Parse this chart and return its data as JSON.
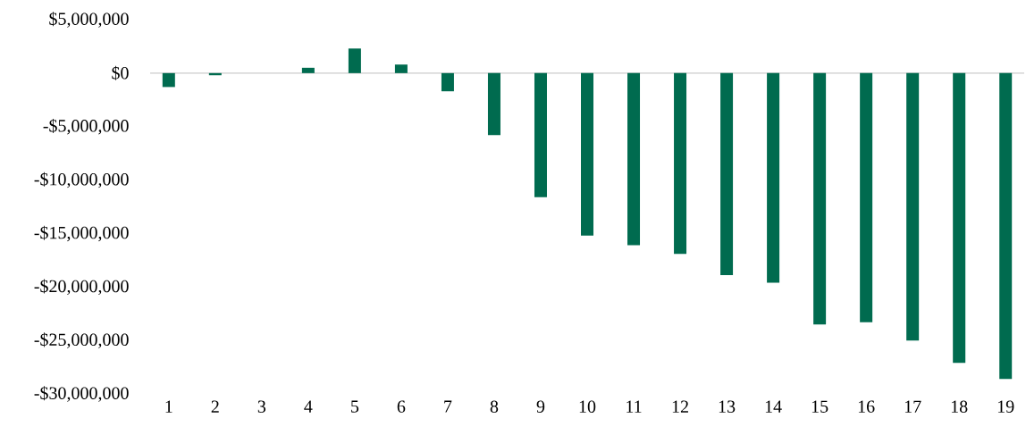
{
  "chart_data": {
    "type": "bar",
    "categories": [
      "1",
      "2",
      "3",
      "4",
      "5",
      "6",
      "7",
      "8",
      "9",
      "10",
      "11",
      "12",
      "13",
      "14",
      "15",
      "16",
      "17",
      "18",
      "19"
    ],
    "values": [
      -1300000,
      -200000,
      0,
      500000,
      2300000,
      800000,
      -1700000,
      -5800000,
      -11600000,
      -15200000,
      -16100000,
      -16900000,
      -18900000,
      -19600000,
      -23500000,
      -23300000,
      -25000000,
      -27100000,
      -28600000
    ],
    "color": "#006b4f",
    "ylim": [
      -30000000,
      5000000
    ],
    "yticks": [
      {
        "value": 5000000,
        "label": "$5,000,000"
      },
      {
        "value": 0,
        "label": "$0"
      },
      {
        "value": -5000000,
        "label": "-$5,000,000"
      },
      {
        "value": -10000000,
        "label": "-$10,000,000"
      },
      {
        "value": -15000000,
        "label": "-$15,000,000"
      },
      {
        "value": -20000000,
        "label": "-$20,000,000"
      },
      {
        "value": -25000000,
        "label": "-$25,000,000"
      },
      {
        "value": -30000000,
        "label": "-$30,000,000"
      }
    ]
  }
}
